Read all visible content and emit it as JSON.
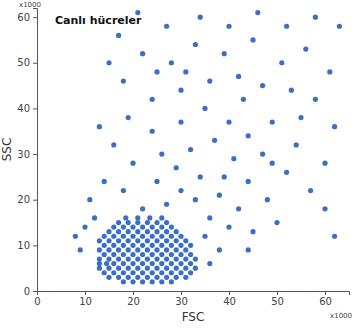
{
  "chart_data": {
    "type": "scatter",
    "title": "Canlı hücreler",
    "xlabel": "FSC",
    "ylabel": "SSC",
    "annotations": [
      {
        "text": "x1000",
        "axis": "y"
      },
      {
        "text": "x1000",
        "axis": "x"
      }
    ],
    "color": "#3b6fc6",
    "marker": "circle",
    "xlim": [
      0,
      65
    ],
    "ylim": [
      0,
      62
    ],
    "xticks": [
      0,
      10,
      20,
      30,
      40,
      50,
      60
    ],
    "yticks": [
      0,
      10,
      20,
      30,
      40,
      50,
      60
    ],
    "x": [
      18,
      20,
      22,
      24,
      26,
      28,
      15,
      17,
      19,
      21,
      23,
      25,
      27,
      29,
      31,
      14,
      16,
      18,
      20,
      22,
      24,
      26,
      28,
      30,
      32,
      13,
      15,
      17,
      19,
      21,
      23,
      25,
      27,
      29,
      31,
      33,
      13,
      14.5,
      16,
      18,
      20,
      22,
      24,
      26,
      28,
      30,
      32,
      13,
      15,
      17,
      19,
      21,
      23,
      25,
      27,
      29,
      31,
      33,
      14,
      16,
      18,
      20,
      22,
      24,
      26,
      28,
      30,
      32,
      13,
      15,
      17,
      19,
      21,
      23,
      25,
      27,
      29,
      31,
      14,
      16,
      18,
      20,
      22,
      24,
      26,
      28,
      30,
      32,
      13,
      15,
      17,
      19,
      21,
      23,
      25,
      27,
      29,
      31,
      14,
      16,
      18,
      20,
      22,
      24,
      26,
      28,
      30,
      15,
      17,
      19,
      21,
      23,
      25,
      27,
      29,
      16,
      18,
      20,
      22,
      24,
      26,
      28,
      17,
      19,
      21,
      23,
      25,
      27,
      18.5,
      21,
      23.5,
      26,
      35,
      38,
      36,
      40,
      33,
      30,
      27,
      22,
      12,
      10,
      11,
      14,
      18,
      25,
      29,
      34,
      38,
      42,
      45,
      44,
      48,
      50,
      52,
      47,
      41,
      37,
      32,
      26,
      20,
      16,
      13,
      19,
      24,
      30,
      35,
      40,
      44,
      49,
      54,
      57,
      60,
      62,
      58,
      53,
      47,
      42,
      36,
      30,
      24,
      18,
      15,
      22,
      28,
      33,
      39,
      45,
      51,
      56,
      61,
      63,
      58,
      52,
      46,
      40,
      34,
      27,
      21,
      17,
      25,
      31,
      43,
      49,
      55,
      60,
      62,
      8,
      9,
      39,
      44,
      36
    ],
    "values": [
      2,
      2,
      2,
      2,
      2,
      2,
      3,
      3,
      3,
      3,
      3,
      3,
      3,
      3,
      3,
      4,
      4,
      4,
      4,
      4,
      4,
      4,
      4,
      4,
      4,
      5,
      5,
      5,
      5,
      5,
      5,
      5,
      5,
      5,
      5,
      5,
      6,
      6,
      6,
      6,
      6,
      6,
      6,
      6,
      6,
      6,
      6,
      7,
      7,
      7,
      7,
      7,
      7,
      7,
      7,
      7,
      7,
      7,
      8,
      8,
      8,
      8,
      8,
      8,
      8,
      8,
      8,
      8,
      9,
      9,
      9,
      9,
      9,
      9,
      9,
      9,
      9,
      9,
      10,
      10,
      10,
      10,
      10,
      10,
      10,
      10,
      10,
      10,
      11,
      11,
      11,
      11,
      11,
      11,
      11,
      11,
      11,
      11,
      12,
      12,
      12,
      12,
      12,
      12,
      12,
      12,
      12,
      13,
      13,
      13,
      13,
      13,
      13,
      13,
      13,
      14,
      14,
      14,
      14,
      14,
      14,
      14,
      15,
      15,
      15,
      15,
      15,
      15,
      16,
      16,
      16,
      16,
      12,
      9,
      16,
      14,
      20,
      22,
      19,
      18,
      16,
      14,
      20,
      24,
      22,
      24,
      27,
      25,
      21,
      18,
      13,
      24,
      20,
      15,
      26,
      30,
      29,
      33,
      31,
      30,
      28,
      32,
      36,
      38,
      35,
      37,
      40,
      37,
      34,
      37,
      32,
      22,
      28,
      36,
      42,
      44,
      45,
      47,
      46,
      44,
      42,
      46,
      50,
      52,
      50,
      54,
      52,
      55,
      50,
      53,
      48,
      58,
      60,
      58,
      61,
      58,
      60,
      58,
      61,
      56,
      48,
      48,
      42,
      28,
      38,
      18,
      12,
      12,
      9,
      25,
      9,
      6
    ]
  }
}
